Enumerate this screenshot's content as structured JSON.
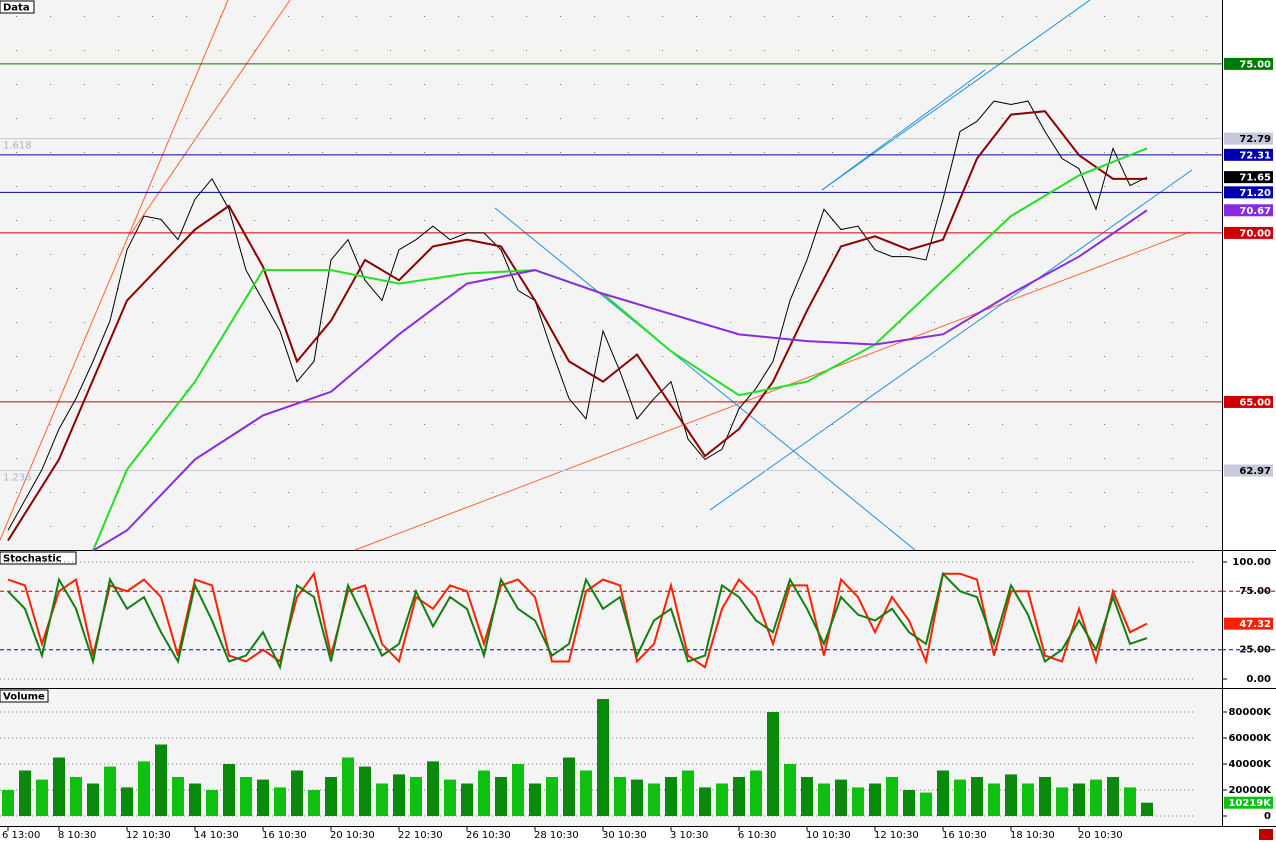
{
  "chart_data": [
    {
      "type": "line",
      "title": "Data",
      "ylim": [
        60.62,
        76.89
      ],
      "annotations": [
        "1.618",
        "1.236"
      ],
      "levels": [
        {
          "value": 75,
          "label": "75.00",
          "color": "#007a00"
        },
        {
          "value": 72.79,
          "label": "72.79",
          "color": "#c8c8dc"
        },
        {
          "value": 72.31,
          "label": "72.31",
          "color": "#0000b0"
        },
        {
          "value": 71.2,
          "label": "71.20",
          "color": "#0000b0"
        },
        {
          "value": 70,
          "label": "70.00",
          "color": "#d00000"
        },
        {
          "value": 65,
          "label": "65.00",
          "color": "#d00000"
        },
        {
          "value": 62.97,
          "label": "62.97",
          "color": "#c8c8dc"
        }
      ],
      "series": [
        {
          "color": "#000000",
          "values": [
            61.2,
            62.1,
            63.0,
            64.2,
            65.1,
            66.2,
            67.4,
            69.5,
            70.5,
            70.4,
            69.8,
            71.0,
            71.6,
            70.7,
            68.9,
            68.0,
            67.1,
            65.6,
            66.2,
            69.2,
            69.8,
            68.6,
            68.0,
            69.5,
            69.8,
            70.2,
            69.8,
            70.0,
            70.0,
            69.5,
            68.3,
            68.0,
            66.5,
            65.1,
            64.5,
            67.1,
            65.9,
            64.5,
            65.1,
            65.6,
            63.9,
            63.3,
            63.6,
            64.8,
            65.4,
            66.2,
            68.0,
            69.2,
            70.7,
            70.1,
            70.2,
            69.5,
            69.3,
            69.3,
            69.2,
            71.0,
            73.0,
            73.3,
            73.9,
            73.8,
            73.9,
            73.0,
            72.2,
            71.9,
            70.7,
            72.5,
            71.4,
            71.65
          ]
        },
        {
          "color": "#8b0000",
          "x": [
            0,
            3,
            7,
            11,
            13,
            15,
            17,
            19,
            21,
            23,
            25,
            27,
            29,
            31,
            33,
            35,
            37,
            39,
            41,
            43,
            45,
            47,
            49,
            51,
            53,
            55,
            57,
            59,
            61,
            63,
            65,
            67
          ],
          "values": [
            60.9,
            63.3,
            68.0,
            70.1,
            70.8,
            69.0,
            66.2,
            67.4,
            69.2,
            68.6,
            69.6,
            69.8,
            69.6,
            68.0,
            66.2,
            65.6,
            66.4,
            64.9,
            63.4,
            64.2,
            65.6,
            67.7,
            69.6,
            69.9,
            69.5,
            69.8,
            72.2,
            73.5,
            73.6,
            72.3,
            71.6,
            71.6
          ]
        },
        {
          "color": "#22e022",
          "x": [
            5,
            7,
            11,
            15,
            19,
            23,
            27,
            31,
            35,
            39,
            43,
            47,
            51,
            55,
            59,
            63,
            67
          ],
          "values": [
            60.6,
            63.0,
            65.6,
            68.9,
            68.9,
            68.5,
            68.8,
            68.9,
            68.2,
            66.5,
            65.2,
            65.6,
            66.7,
            68.6,
            70.5,
            71.7,
            72.5
          ]
        },
        {
          "color": "#8a2be2",
          "x": [
            5,
            7,
            11,
            15,
            19,
            23,
            27,
            31,
            35,
            39,
            43,
            47,
            51,
            55,
            59,
            63,
            67
          ],
          "values": [
            60.6,
            61.2,
            63.3,
            64.6,
            65.3,
            67.0,
            68.5,
            68.9,
            68.2,
            67.6,
            67.0,
            66.8,
            66.7,
            67.0,
            68.2,
            69.3,
            70.67
          ]
        }
      ]
    },
    {
      "type": "line",
      "title": "Stochastic",
      "ylim": [
        -7.7,
        109.4
      ],
      "yticks": [
        {
          "value": 100,
          "label": "100.00"
        },
        {
          "value": 0,
          "label": "0.00"
        }
      ],
      "levels": [
        {
          "value": 75,
          "label": "75.00",
          "color": "#c00000"
        },
        {
          "value": 25,
          "label": "25.00",
          "color": "#0000c0"
        }
      ],
      "series": [
        {
          "color": "#ff2000",
          "values": [
            85,
            80,
            30,
            75,
            85,
            20,
            80,
            75,
            85,
            70,
            20,
            85,
            80,
            20,
            15,
            25,
            15,
            70,
            90,
            20,
            75,
            80,
            30,
            15,
            70,
            60,
            80,
            75,
            30,
            80,
            85,
            70,
            15,
            15,
            75,
            85,
            80,
            15,
            30,
            80,
            20,
            10,
            60,
            85,
            70,
            30,
            80,
            80,
            20,
            85,
            70,
            40,
            70,
            50,
            15,
            90,
            90,
            85,
            20,
            75,
            75,
            20,
            15,
            60,
            15,
            75,
            40,
            47.32
          ]
        },
        {
          "color": "#108010",
          "values": [
            75,
            60,
            20,
            85,
            60,
            15,
            85,
            60,
            70,
            40,
            15,
            80,
            50,
            15,
            20,
            40,
            10,
            80,
            70,
            15,
            80,
            50,
            20,
            30,
            75,
            45,
            70,
            60,
            20,
            85,
            60,
            50,
            20,
            30,
            85,
            60,
            70,
            20,
            50,
            60,
            15,
            20,
            80,
            70,
            50,
            40,
            85,
            60,
            30,
            70,
            55,
            50,
            60,
            40,
            30,
            90,
            75,
            70,
            30,
            80,
            55,
            15,
            25,
            50,
            25,
            70,
            30,
            35
          ]
        }
      ]
    },
    {
      "type": "bar",
      "title": "Volume",
      "ylim": [
        -7692,
        97692
      ],
      "yticks": [
        {
          "value": 80000,
          "label": "80000K"
        },
        {
          "value": 60000,
          "label": "60000K"
        },
        {
          "value": 40000,
          "label": "40000K"
        },
        {
          "value": 20000,
          "label": "20000K"
        },
        0
      ],
      "categories": [
        "6 13:00",
        null,
        null,
        "8 10:30",
        null,
        null,
        null,
        "12 10:30",
        null,
        null,
        null,
        "14 10:30",
        null,
        null,
        null,
        "16 10:30",
        null,
        null,
        null,
        "20 10:30",
        null,
        null,
        null,
        "22 10:30",
        null,
        null,
        null,
        "26 10:30",
        null,
        null,
        null,
        "28 10:30",
        null,
        null,
        null,
        "30 10:30",
        null,
        null,
        null,
        "3 10:30",
        null,
        null,
        null,
        "6 10:30",
        null,
        null,
        null,
        "10 10:30",
        null,
        null,
        null,
        "12 10:30",
        null,
        null,
        null,
        "16 10:30",
        null,
        null,
        null,
        "18 10:30",
        null,
        null,
        null,
        "20 10:30",
        null,
        null,
        null,
        null
      ],
      "color": "#10c010",
      "values": [
        20000,
        35000,
        28000,
        45000,
        30000,
        25000,
        38000,
        22000,
        42000,
        55000,
        30000,
        25000,
        20000,
        40000,
        30000,
        28000,
        22000,
        35000,
        20000,
        30000,
        45000,
        38000,
        25000,
        32000,
        30000,
        42000,
        28000,
        25000,
        35000,
        30000,
        40000,
        25000,
        30000,
        45000,
        35000,
        90000,
        30000,
        28000,
        25000,
        30000,
        35000,
        22000,
        25000,
        30000,
        35000,
        80000,
        40000,
        30000,
        25000,
        28000,
        22000,
        25000,
        30000,
        20000,
        18000,
        35000,
        28000,
        30000,
        25000,
        32000,
        25000,
        30000,
        22000,
        25000,
        28000,
        30000,
        22000,
        10219
      ],
      "value_labels": [
        null,
        null,
        null,
        null,
        null,
        null,
        null,
        null,
        null,
        null,
        null,
        null,
        null,
        null,
        null,
        null,
        null,
        null,
        null,
        null,
        null,
        null,
        null,
        null,
        null,
        null,
        null,
        null,
        null,
        null,
        null,
        null,
        null,
        null,
        null,
        null,
        null,
        null,
        null,
        null,
        null,
        null,
        null,
        null,
        null,
        null,
        null,
        null,
        null,
        null,
        null,
        null,
        null,
        null,
        null,
        null,
        null,
        null,
        null,
        null,
        null,
        null,
        null,
        null,
        null,
        null,
        null,
        "10219K"
      ]
    }
  ]
}
